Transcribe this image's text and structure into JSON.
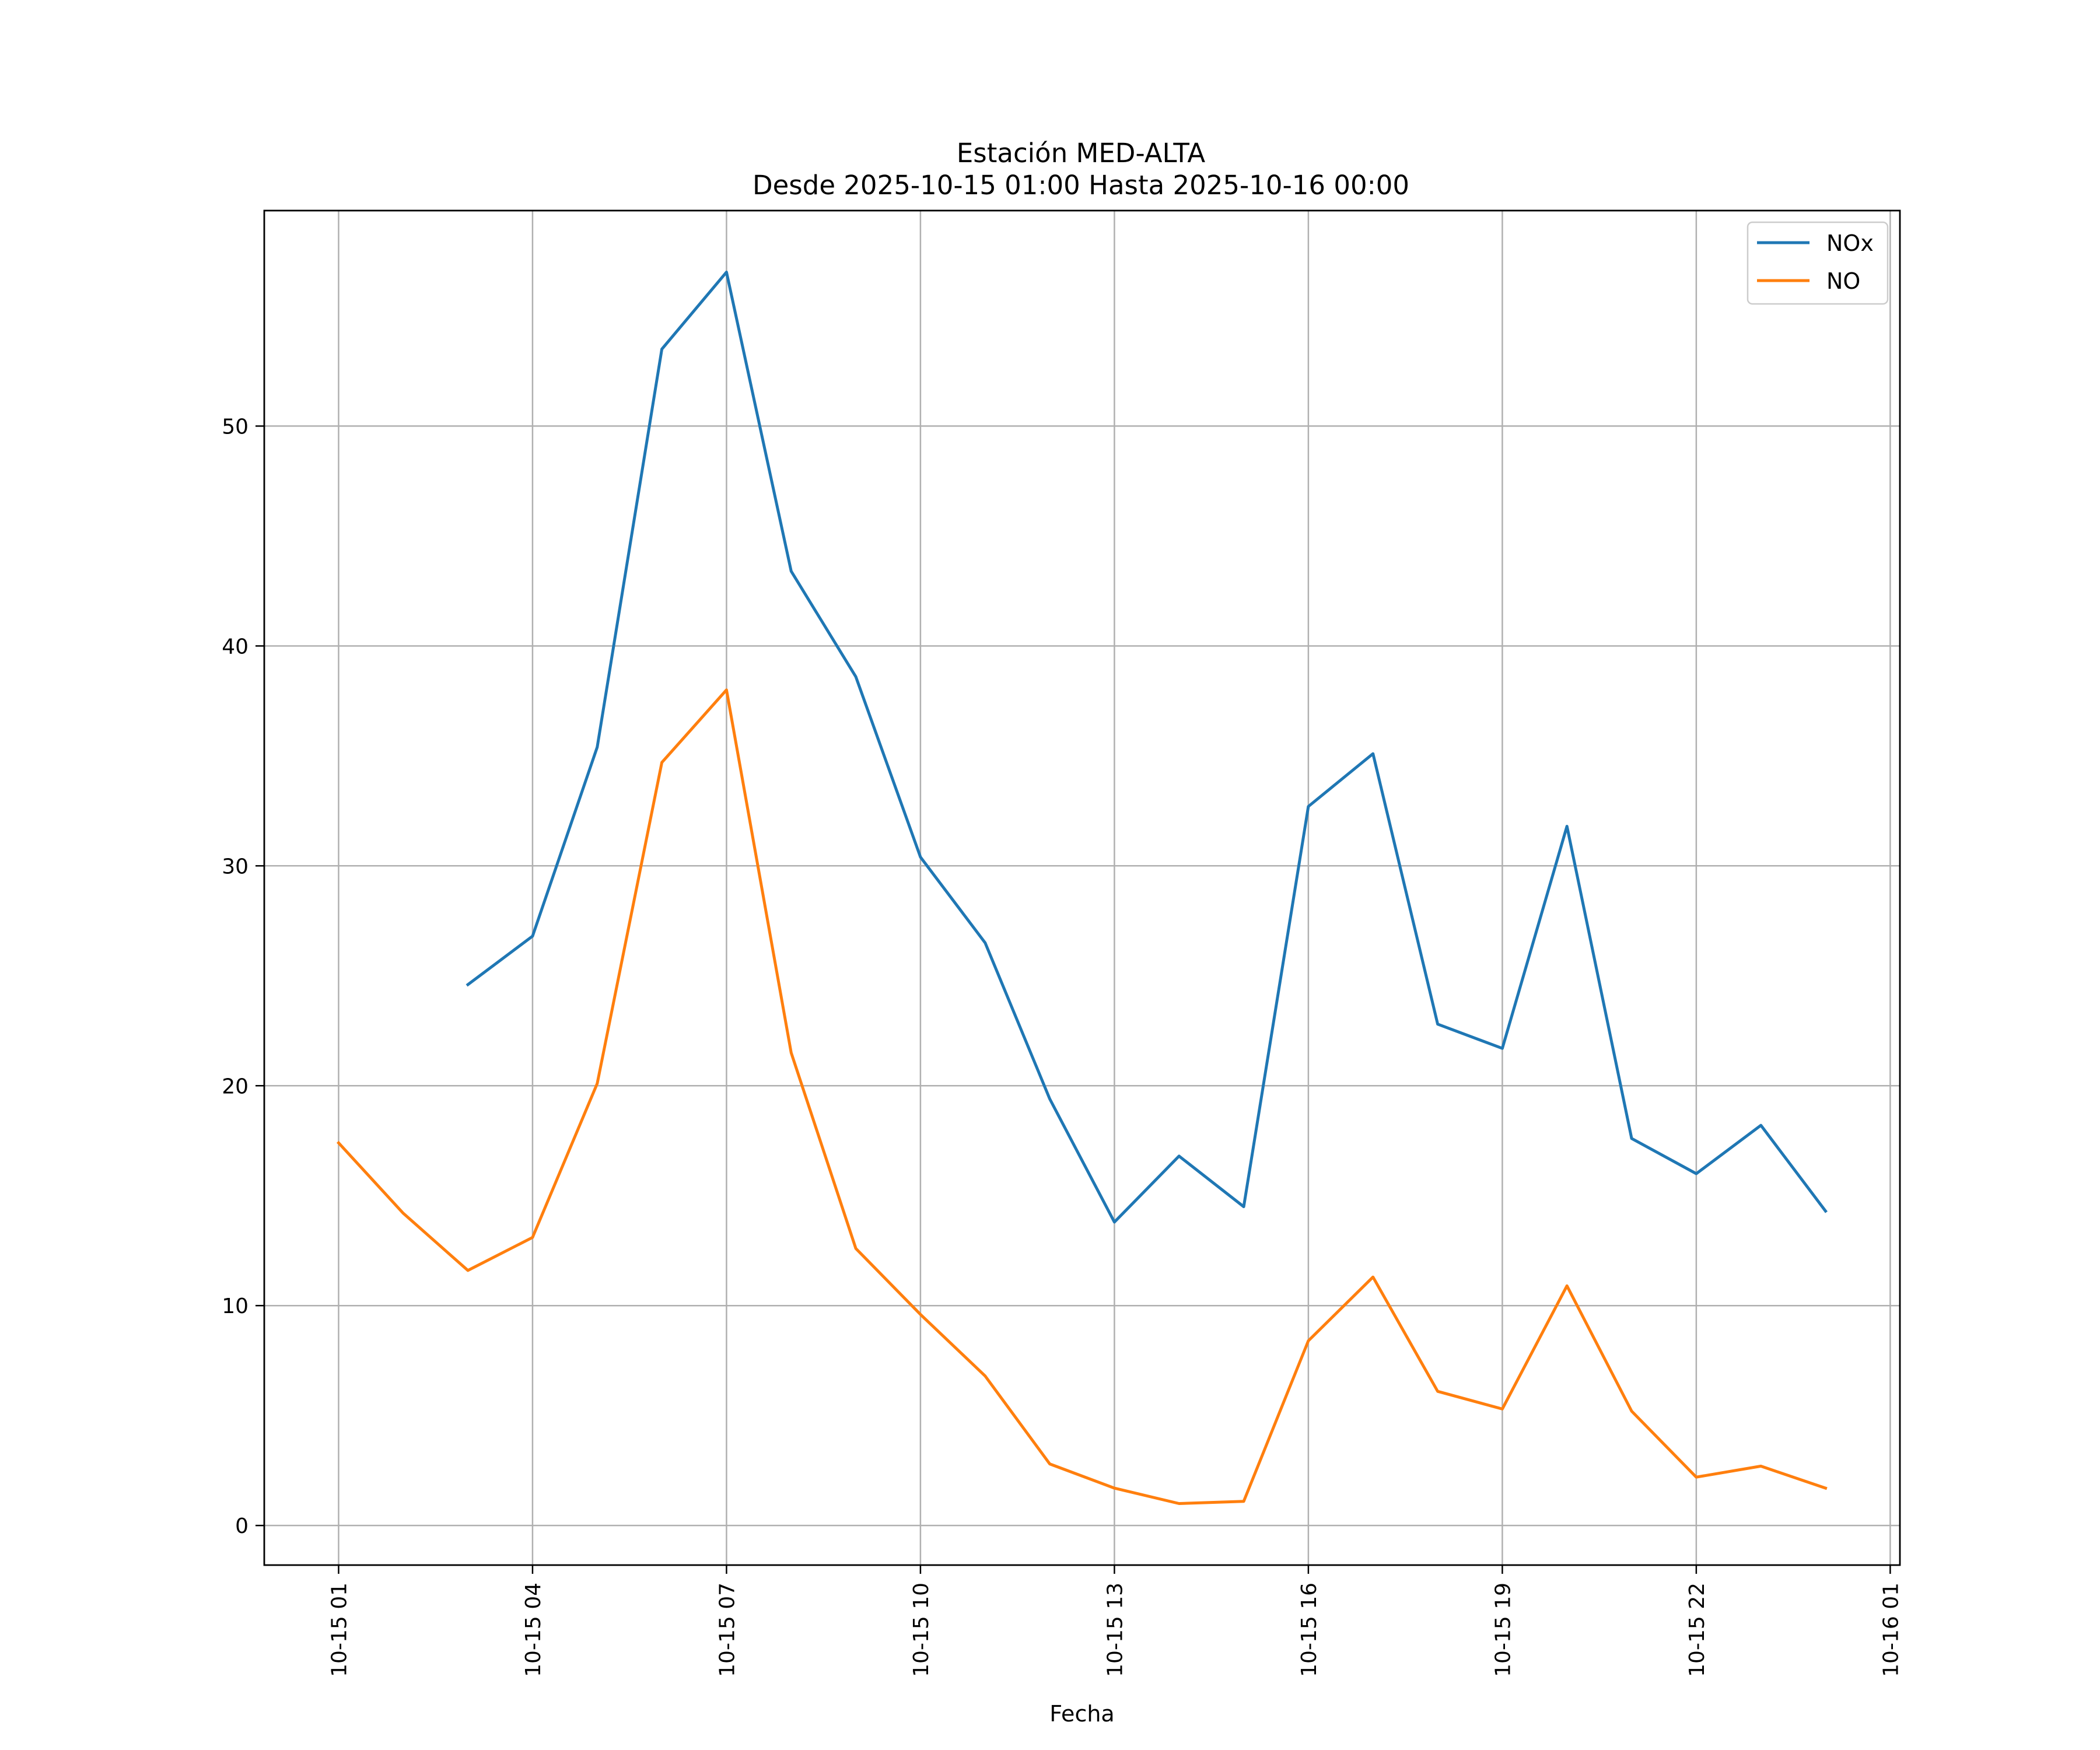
{
  "chart_data": {
    "type": "line",
    "title": "Estación MED-ALTA",
    "subtitle": "Desde 2025-10-15 01:00 Hasta 2025-10-16 00:00",
    "xlabel": "Fecha",
    "ylabel": "",
    "x": [
      "2025-10-15 01:00",
      "2025-10-15 02:00",
      "2025-10-15 03:00",
      "2025-10-15 04:00",
      "2025-10-15 05:00",
      "2025-10-15 06:00",
      "2025-10-15 07:00",
      "2025-10-15 08:00",
      "2025-10-15 09:00",
      "2025-10-15 10:00",
      "2025-10-15 11:00",
      "2025-10-15 12:00",
      "2025-10-15 13:00",
      "2025-10-15 14:00",
      "2025-10-15 15:00",
      "2025-10-15 16:00",
      "2025-10-15 17:00",
      "2025-10-15 18:00",
      "2025-10-15 19:00",
      "2025-10-15 20:00",
      "2025-10-15 21:00",
      "2025-10-15 22:00",
      "2025-10-15 23:00",
      "2025-10-16 00:00"
    ],
    "series": [
      {
        "name": "NOx",
        "color": "#1f77b4",
        "values": [
          null,
          null,
          24.6,
          26.8,
          35.4,
          53.5,
          57.0,
          43.4,
          38.6,
          30.4,
          26.5,
          19.4,
          13.8,
          16.8,
          14.5,
          32.7,
          35.1,
          22.8,
          21.7,
          31.8,
          17.6,
          16.0,
          18.2,
          14.3
        ]
      },
      {
        "name": "NO",
        "color": "#ff7f0e",
        "values": [
          17.4,
          14.2,
          11.6,
          13.1,
          20.1,
          34.7,
          38.0,
          21.5,
          12.6,
          9.6,
          6.8,
          2.8,
          1.7,
          1.0,
          1.1,
          8.4,
          11.3,
          6.1,
          5.3,
          10.9,
          5.2,
          2.2,
          2.7,
          1.7
        ]
      }
    ],
    "xlim": [
      "2025-10-14 23:51",
      "2025-10-16 01:09"
    ],
    "ylim": [
      -1.8,
      59.8
    ],
    "x_ticks": [
      {
        "value": "2025-10-15 01:00",
        "label": "10-15 01"
      },
      {
        "value": "2025-10-15 04:00",
        "label": "10-15 04"
      },
      {
        "value": "2025-10-15 07:00",
        "label": "10-15 07"
      },
      {
        "value": "2025-10-15 10:00",
        "label": "10-15 10"
      },
      {
        "value": "2025-10-15 13:00",
        "label": "10-15 13"
      },
      {
        "value": "2025-10-15 16:00",
        "label": "10-15 16"
      },
      {
        "value": "2025-10-15 19:00",
        "label": "10-15 19"
      },
      {
        "value": "2025-10-15 22:00",
        "label": "10-15 22"
      },
      {
        "value": "2025-10-16 01:00",
        "label": "10-16 01"
      }
    ],
    "y_ticks": [
      {
        "value": 0,
        "label": "0"
      },
      {
        "value": 10,
        "label": "10"
      },
      {
        "value": 20,
        "label": "20"
      },
      {
        "value": 30,
        "label": "30"
      },
      {
        "value": 40,
        "label": "40"
      },
      {
        "value": 50,
        "label": "50"
      }
    ],
    "grid": true,
    "legend_position": "top-right"
  }
}
